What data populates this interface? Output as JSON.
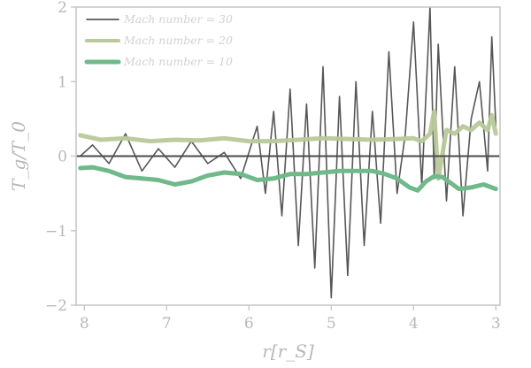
{
  "chart_data": {
    "type": "line",
    "title": "",
    "xlabel": "r[r_S]",
    "ylabel": "T_g/T_0",
    "xlim": [
      8.1,
      2.95
    ],
    "ylim": [
      -2,
      2
    ],
    "xticks": [
      8,
      7,
      6,
      5,
      4,
      3
    ],
    "yticks": [
      2,
      1,
      0,
      -1,
      -2
    ],
    "xtick_labels": [
      "8",
      "7",
      "6",
      "5",
      "4",
      "3"
    ],
    "ytick_labels": [
      "2",
      "1",
      "0",
      "−1",
      "−2"
    ],
    "grid": false,
    "legend_position": "top-left",
    "colors": {
      "mach30": "#3a3a3a",
      "mach20": "#b8c99a",
      "mach10": "#6fb98a",
      "axis": "#c8c8c8",
      "zero_line": "#4a4a4a"
    },
    "series": [
      {
        "name": "Mach number = 30",
        "x": [
          8.05,
          7.9,
          7.7,
          7.5,
          7.3,
          7.1,
          6.9,
          6.7,
          6.5,
          6.3,
          6.1,
          5.9,
          5.8,
          5.7,
          5.6,
          5.5,
          5.4,
          5.3,
          5.2,
          5.1,
          5.0,
          4.9,
          4.8,
          4.7,
          4.6,
          4.5,
          4.4,
          4.3,
          4.2,
          4.1,
          4.0,
          3.9,
          3.8,
          3.75,
          3.7,
          3.6,
          3.5,
          3.4,
          3.3,
          3.2,
          3.1,
          3.05,
          3.0
        ],
        "y": [
          0.0,
          0.15,
          -0.1,
          0.3,
          -0.2,
          0.1,
          -0.15,
          0.2,
          -0.1,
          0.05,
          -0.3,
          0.4,
          -0.5,
          0.6,
          -0.8,
          0.9,
          -1.2,
          0.7,
          -1.5,
          1.2,
          -1.9,
          0.8,
          -1.6,
          1.0,
          -1.2,
          0.6,
          -0.9,
          1.4,
          -0.5,
          0.3,
          1.8,
          -0.4,
          2.0,
          -0.3,
          1.5,
          -0.6,
          1.2,
          -0.8,
          0.5,
          1.0,
          -0.2,
          1.6,
          0.4
        ]
      },
      {
        "name": "Mach number = 20",
        "x": [
          8.05,
          7.8,
          7.5,
          7.2,
          6.9,
          6.6,
          6.3,
          6.0,
          5.7,
          5.4,
          5.1,
          4.8,
          4.5,
          4.2,
          4.0,
          3.9,
          3.8,
          3.75,
          3.7,
          3.6,
          3.5,
          3.4,
          3.3,
          3.2,
          3.1,
          3.05,
          3.0
        ],
        "y": [
          0.28,
          0.22,
          0.24,
          0.2,
          0.22,
          0.21,
          0.24,
          0.2,
          0.2,
          0.22,
          0.24,
          0.23,
          0.22,
          0.23,
          0.24,
          0.2,
          0.3,
          0.6,
          -0.3,
          0.35,
          0.3,
          0.4,
          0.35,
          0.45,
          0.35,
          0.55,
          0.3
        ]
      },
      {
        "name": "Mach number = 10",
        "x": [
          8.05,
          7.9,
          7.7,
          7.5,
          7.3,
          7.1,
          6.9,
          6.7,
          6.5,
          6.3,
          6.1,
          5.9,
          5.7,
          5.5,
          5.3,
          5.1,
          4.9,
          4.7,
          4.5,
          4.35,
          4.2,
          4.05,
          3.95,
          3.85,
          3.75,
          3.65,
          3.55,
          3.45,
          3.3,
          3.15,
          3.0
        ],
        "y": [
          -0.16,
          -0.15,
          -0.2,
          -0.28,
          -0.3,
          -0.32,
          -0.38,
          -0.34,
          -0.26,
          -0.22,
          -0.24,
          -0.32,
          -0.3,
          -0.24,
          -0.24,
          -0.22,
          -0.2,
          -0.2,
          -0.2,
          -0.24,
          -0.3,
          -0.42,
          -0.46,
          -0.34,
          -0.27,
          -0.28,
          -0.36,
          -0.44,
          -0.42,
          -0.38,
          -0.44
        ]
      }
    ]
  }
}
